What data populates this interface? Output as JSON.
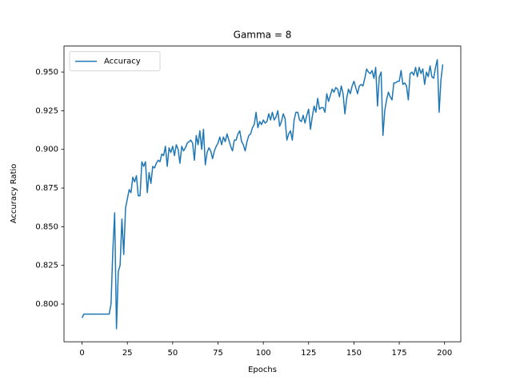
{
  "chart_data": {
    "type": "line",
    "title": "Gamma = 8",
    "xlabel": "Epochs",
    "ylabel": "Accuracy Ratio",
    "x": [
      0,
      1,
      2,
      3,
      4,
      5,
      6,
      7,
      8,
      9,
      10,
      11,
      12,
      13,
      14,
      15,
      16,
      17,
      18,
      19,
      20,
      21,
      22,
      23,
      24,
      25,
      26,
      27,
      28,
      29,
      30,
      31,
      32,
      33,
      34,
      35,
      36,
      37,
      38,
      39,
      40,
      41,
      42,
      43,
      44,
      45,
      46,
      47,
      48,
      49,
      50,
      51,
      52,
      53,
      54,
      55,
      56,
      57,
      58,
      59,
      60,
      61,
      62,
      63,
      64,
      65,
      66,
      67,
      68,
      69,
      70,
      71,
      72,
      73,
      74,
      75,
      76,
      77,
      78,
      79,
      80,
      81,
      82,
      83,
      84,
      85,
      86,
      87,
      88,
      89,
      90,
      91,
      92,
      93,
      94,
      95,
      96,
      97,
      98,
      99,
      100,
      101,
      102,
      103,
      104,
      105,
      106,
      107,
      108,
      109,
      110,
      111,
      112,
      113,
      114,
      115,
      116,
      117,
      118,
      119,
      120,
      121,
      122,
      123,
      124,
      125,
      126,
      127,
      128,
      129,
      130,
      131,
      132,
      133,
      134,
      135,
      136,
      137,
      138,
      139,
      140,
      141,
      142,
      143,
      144,
      145,
      146,
      147,
      148,
      149,
      150,
      151,
      152,
      153,
      154,
      155,
      156,
      157,
      158,
      159,
      160,
      161,
      162,
      163,
      164,
      165,
      166,
      167,
      168,
      169,
      170,
      171,
      172,
      173,
      174,
      175,
      176,
      177,
      178,
      179,
      180,
      181,
      182,
      183,
      184,
      185,
      186,
      187,
      188,
      189,
      190,
      191,
      192,
      193,
      194,
      195,
      196,
      197,
      198,
      199
    ],
    "series": [
      {
        "name": "Accuracy",
        "color": "#1f77b4",
        "values": [
          0.791,
          0.7935,
          0.7935,
          0.7935,
          0.7935,
          0.7935,
          0.7935,
          0.7935,
          0.7935,
          0.7935,
          0.7935,
          0.7935,
          0.7935,
          0.7935,
          0.7935,
          0.7935,
          0.8,
          0.835,
          0.859,
          0.784,
          0.821,
          0.825,
          0.855,
          0.832,
          0.862,
          0.868,
          0.874,
          0.872,
          0.882,
          0.879,
          0.883,
          0.87,
          0.87,
          0.892,
          0.889,
          0.892,
          0.872,
          0.885,
          0.878,
          0.889,
          0.888,
          0.891,
          0.893,
          0.892,
          0.897,
          0.896,
          0.902,
          0.889,
          0.901,
          0.898,
          0.902,
          0.896,
          0.903,
          0.9,
          0.891,
          0.902,
          0.899,
          0.901,
          0.904,
          0.905,
          0.906,
          0.904,
          0.893,
          0.909,
          0.903,
          0.912,
          0.9,
          0.913,
          0.89,
          0.898,
          0.901,
          0.899,
          0.894,
          0.899,
          0.902,
          0.904,
          0.908,
          0.903,
          0.908,
          0.905,
          0.91,
          0.906,
          0.902,
          0.899,
          0.906,
          0.906,
          0.91,
          0.912,
          0.905,
          0.903,
          0.899,
          0.905,
          0.909,
          0.91,
          0.914,
          0.916,
          0.924,
          0.914,
          0.918,
          0.916,
          0.919,
          0.917,
          0.918,
          0.923,
          0.919,
          0.924,
          0.919,
          0.921,
          0.925,
          0.915,
          0.918,
          0.923,
          0.92,
          0.906,
          0.91,
          0.912,
          0.906,
          0.919,
          0.924,
          0.924,
          0.919,
          0.918,
          0.922,
          0.917,
          0.922,
          0.926,
          0.913,
          0.921,
          0.928,
          0.924,
          0.933,
          0.926,
          0.927,
          0.927,
          0.924,
          0.936,
          0.931,
          0.935,
          0.939,
          0.937,
          0.94,
          0.939,
          0.934,
          0.941,
          0.936,
          0.923,
          0.933,
          0.939,
          0.936,
          0.941,
          0.944,
          0.94,
          0.936,
          0.941,
          0.942,
          0.941,
          0.946,
          0.952,
          0.95,
          0.949,
          0.951,
          0.946,
          0.953,
          0.928,
          0.947,
          0.95,
          0.909,
          0.925,
          0.932,
          0.937,
          0.934,
          0.932,
          0.943,
          0.943,
          0.944,
          0.944,
          0.951,
          0.942,
          0.943,
          0.941,
          0.932,
          0.949,
          0.95,
          0.948,
          0.953,
          0.947,
          0.953,
          0.949,
          0.952,
          0.942,
          0.95,
          0.947,
          0.954,
          0.947,
          0.946,
          0.953,
          0.958,
          0.924,
          0.945,
          0.955
        ]
      }
    ],
    "xlim": [
      -9.95,
      208.95
    ],
    "xticks": [
      0,
      25,
      50,
      75,
      100,
      125,
      150,
      175,
      200
    ],
    "ylim": [
      0.7756,
      0.9668
    ],
    "yticks": [
      {
        "value": 0.8,
        "label": "0.800"
      },
      {
        "value": 0.825,
        "label": "0.825"
      },
      {
        "value": 0.85,
        "label": "0.850"
      },
      {
        "value": 0.875,
        "label": "0.875"
      },
      {
        "value": 0.9,
        "label": "0.900"
      },
      {
        "value": 0.925,
        "label": "0.925"
      },
      {
        "value": 0.95,
        "label": "0.950"
      }
    ],
    "legend": "upper left",
    "grid": false
  }
}
